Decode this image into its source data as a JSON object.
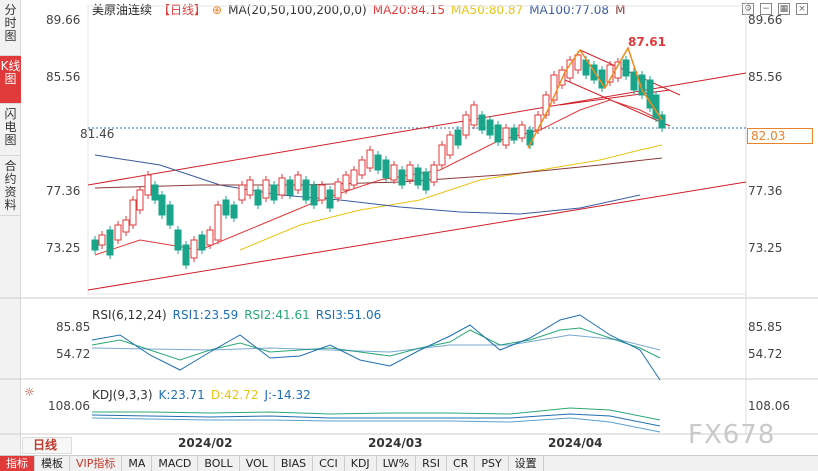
{
  "sidebar": {
    "tabs": [
      {
        "label": "分时图",
        "active": false
      },
      {
        "label": "K线图",
        "active": true
      },
      {
        "label": "闪电图",
        "active": false
      },
      {
        "label": "合约资料",
        "active": false
      }
    ]
  },
  "header": {
    "instrument": "美原油连续",
    "period": "【日线】",
    "ma_label": "MA(20,50,100,200,0,0)",
    "ma20": "MA20:84.15",
    "ma50": "MA50:80.87",
    "ma100": "MA100:77.08",
    "m": "M"
  },
  "price_axis": {
    "ticks": [
      "89.66",
      "85.56",
      "81.46",
      "77.36",
      "73.25"
    ],
    "current_price": "82.03",
    "peak_label": "87.61"
  },
  "rsi": {
    "label": "RSI(6,12,24)",
    "rsi1": "RSI1:23.59",
    "rsi2": "RSI2:41.61",
    "rsi3": "RSI3:51.06",
    "ticks": [
      "85.85",
      "54.72"
    ]
  },
  "kdj": {
    "label": "KDJ(9,3,3)",
    "k": "K:23.71",
    "d": "D:42.72",
    "j": "J:-14.32",
    "ticks": [
      "108.06"
    ]
  },
  "dates": [
    "2024/02",
    "2024/03",
    "2024/04"
  ],
  "period_button": "日线",
  "toolbar": [
    "指标",
    "模板",
    "VIP指标",
    "MA",
    "MACD",
    "BOLL",
    "VOL",
    "BIAS",
    "CCI",
    "KDJ",
    "LW%",
    "RSI",
    "CR",
    "PSY",
    "设置"
  ],
  "watermark": "FX678",
  "colors": {
    "up": "#e03a3a",
    "down": "#1aa58a",
    "ma20": "#e03a3a",
    "ma50": "#e8c417",
    "ma100": "#3a5aa0",
    "ma200": "#8b3a3a",
    "rsi1": "#1f6fb2",
    "rsi2": "#2aa876",
    "rsi3": "#1f6fb2"
  }
}
